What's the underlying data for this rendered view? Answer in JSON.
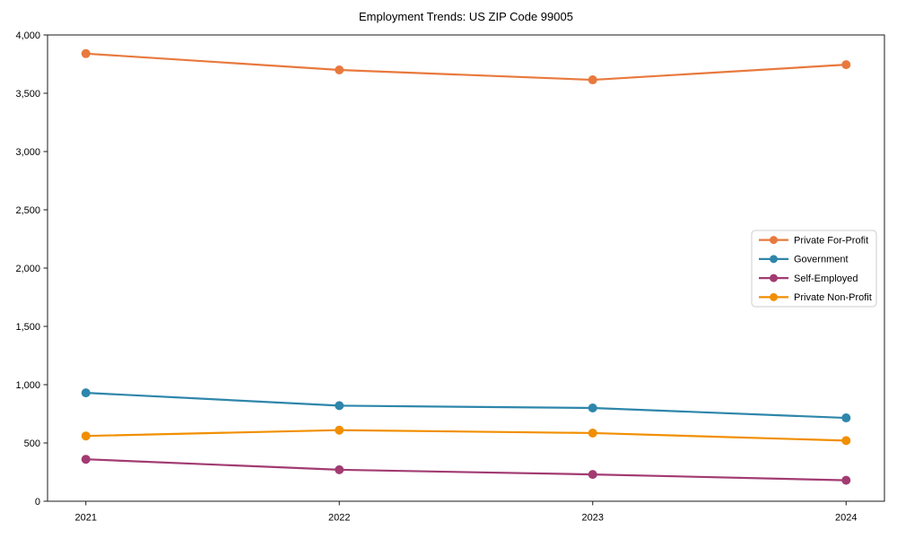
{
  "window": {
    "background": "#ffffff"
  },
  "chart_data": {
    "type": "line",
    "title": "Employment Trends: US ZIP Code 99005",
    "xlabel": "",
    "ylabel": "",
    "x": [
      2021,
      2022,
      2023,
      2024
    ],
    "xticklabels": [
      "2021",
      "2022",
      "2023",
      "2024"
    ],
    "series": [
      {
        "name": "Private For-Profit",
        "color": "#E8793D",
        "values": [
          3840,
          3700,
          3615,
          3745
        ]
      },
      {
        "name": "Government",
        "color": "#2E86AB",
        "values": [
          930,
          820,
          800,
          715
        ]
      },
      {
        "name": "Self-Employed",
        "color": "#A23B72",
        "values": [
          360,
          270,
          230,
          180
        ]
      },
      {
        "name": "Private Non-Profit",
        "color": "#F18F01",
        "values": [
          560,
          610,
          585,
          520
        ]
      }
    ],
    "ylim": [
      0,
      4000
    ],
    "yticks": [
      0,
      500,
      1000,
      1500,
      2000,
      2500,
      3000,
      3500,
      4000
    ],
    "grid": false,
    "legend_position": "center right",
    "marker": "o"
  },
  "style_colors": {
    "spine": "#1a1a1a",
    "tick_text": "#000000",
    "legend_border": "#cccccc",
    "legend_fill": "#ffffff"
  }
}
